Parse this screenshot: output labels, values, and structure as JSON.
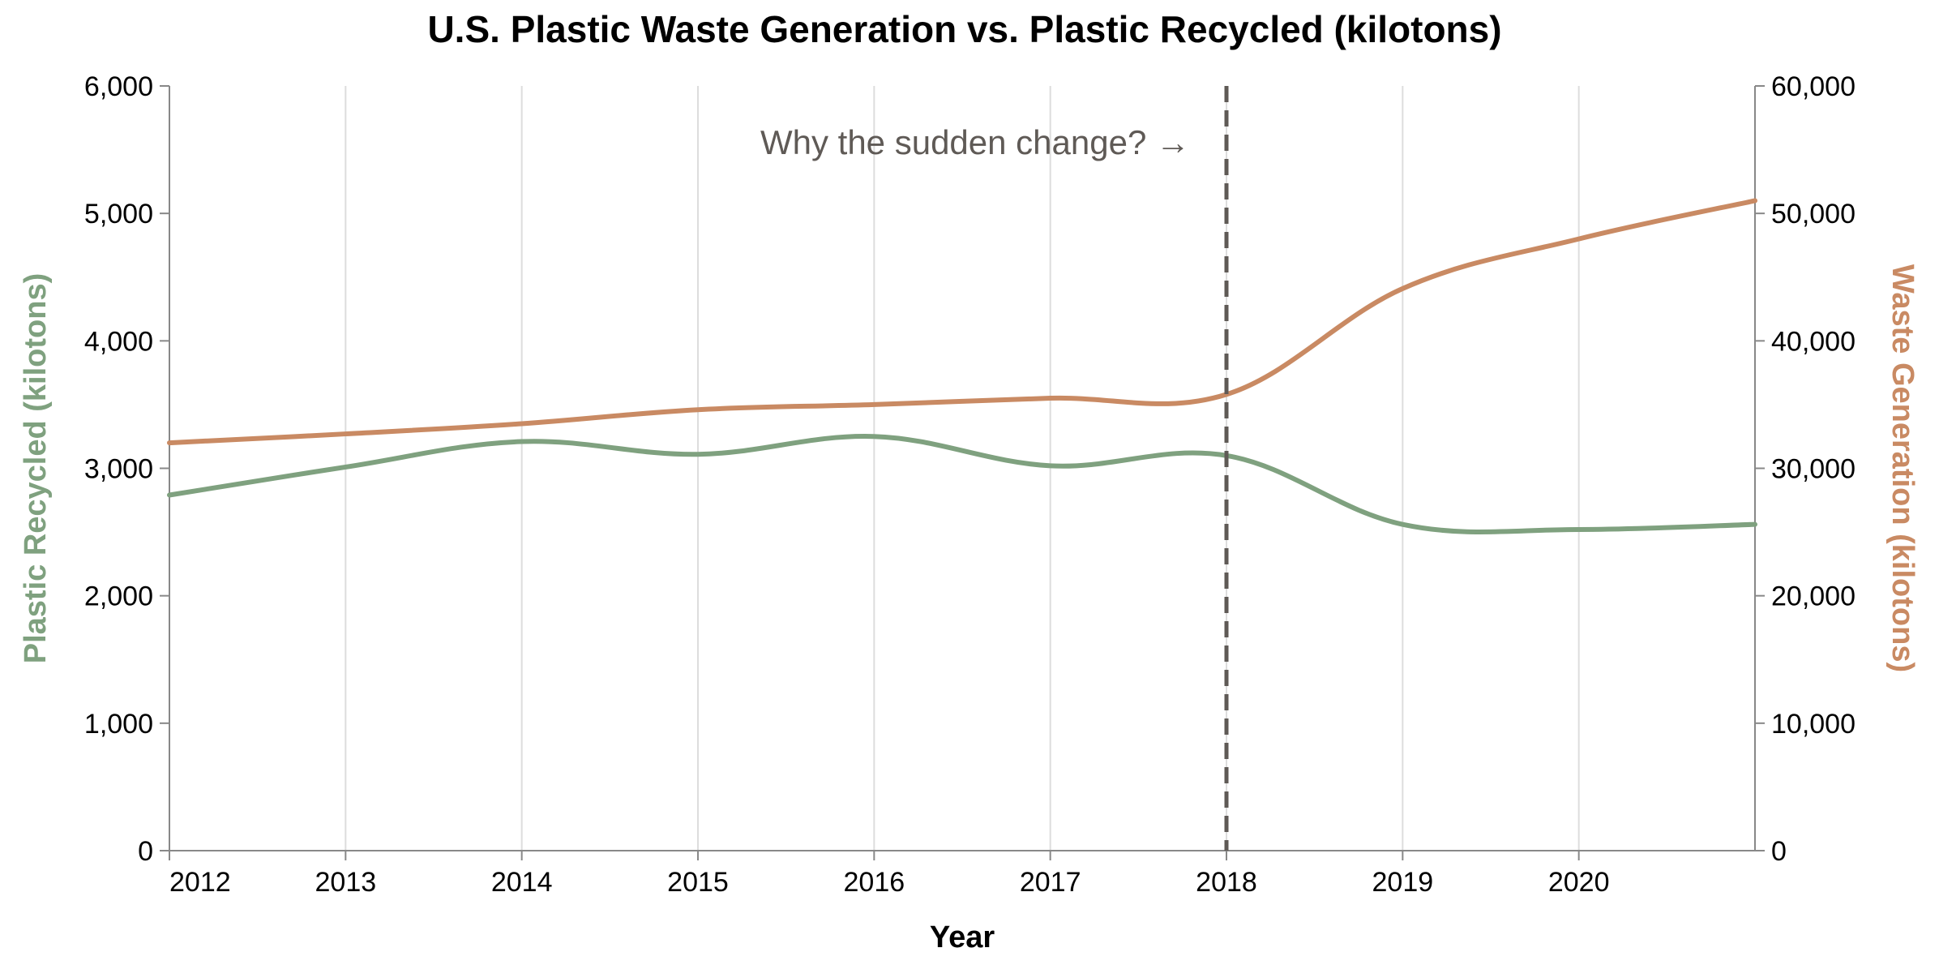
{
  "chart_data": {
    "type": "line",
    "title": "U.S. Plastic Waste Generation vs. Plastic Recycled (kilotons)",
    "xlabel": "Year",
    "x": [
      2012,
      2013,
      2014,
      2015,
      2016,
      2017,
      2018,
      2019,
      2020,
      2021
    ],
    "x_tick_labels": [
      "2012",
      "2013",
      "2014",
      "2015",
      "2016",
      "2017",
      "2018",
      "2019",
      "2020"
    ],
    "xlim": [
      2012,
      2021
    ],
    "y_left": {
      "label": "Plastic Recycled (kilotons)",
      "ylim": [
        0,
        6000
      ],
      "ticks": [
        "0",
        "1,000",
        "2,000",
        "3,000",
        "4,000",
        "5,000",
        "6,000"
      ],
      "color": "#7fa17f"
    },
    "y_right": {
      "label": "Waste Generation (kilotons)",
      "ylim": [
        0,
        60000
      ],
      "ticks": [
        "0",
        "10,000",
        "20,000",
        "30,000",
        "40,000",
        "50,000",
        "60,000"
      ],
      "color": "#c98a63"
    },
    "series": [
      {
        "axis": "left",
        "color": "#7fa17f",
        "values": [
          2790,
          3010,
          3210,
          3110,
          3250,
          3020,
          3100,
          2560,
          2520,
          2560
        ]
      },
      {
        "axis": "right",
        "color": "#c98a63",
        "values": [
          32000,
          32700,
          33500,
          34600,
          35000,
          35500,
          35800,
          44100,
          48000,
          51000
        ]
      }
    ],
    "annotation": {
      "x": 2018,
      "text": "Why the sudden change? →",
      "line_color": "#5f5a56",
      "line_style": "dashed"
    },
    "grid": "vertical",
    "curve": "smooth"
  }
}
